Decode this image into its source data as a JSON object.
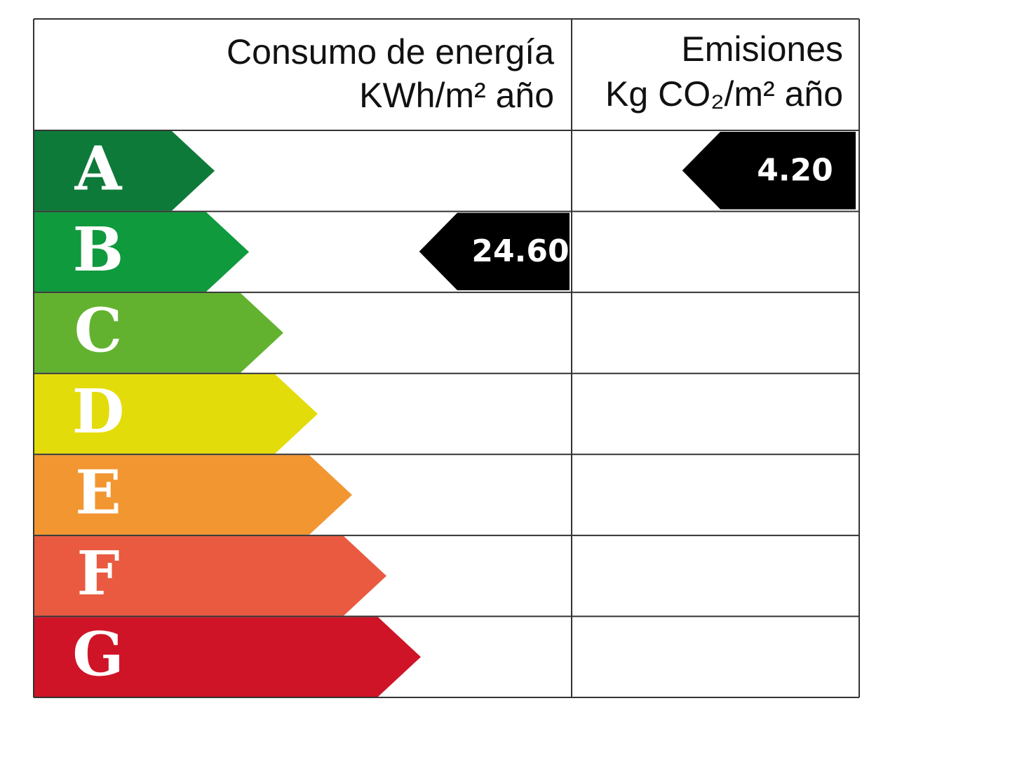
{
  "header": {
    "energy_title": "Consumo de energía",
    "energy_unit": "KWh/m² año",
    "emissions_title": "Emisiones",
    "emissions_unit": "Kg CO₂/m² año"
  },
  "ratings": [
    {
      "letter": "A",
      "color": "#0e7a3a"
    },
    {
      "letter": "B",
      "color": "#0f9a3d"
    },
    {
      "letter": "C",
      "color": "#62b22f"
    },
    {
      "letter": "D",
      "color": "#e3dc0b"
    },
    {
      "letter": "E",
      "color": "#f29632"
    },
    {
      "letter": "F",
      "color": "#e95a40"
    },
    {
      "letter": "G",
      "color": "#cf1427"
    }
  ],
  "energy": {
    "rating": "B",
    "value": "24.60"
  },
  "emissions": {
    "rating": "A",
    "value": "4.20"
  }
}
